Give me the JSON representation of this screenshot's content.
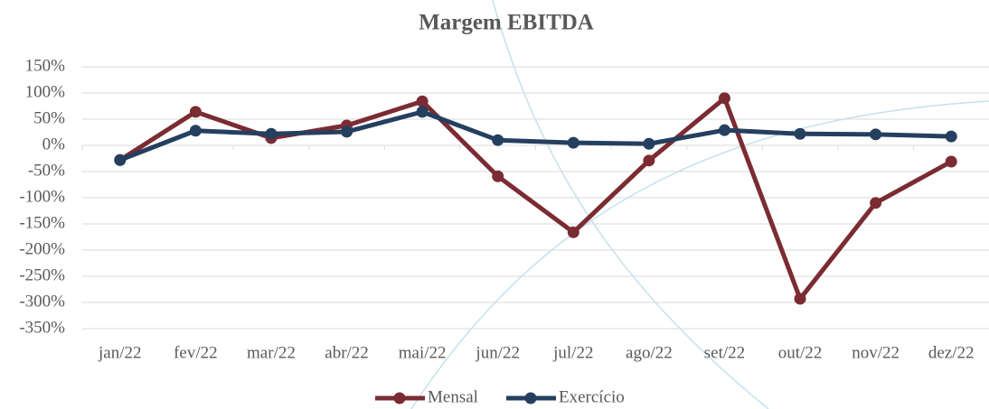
{
  "chart_data": {
    "type": "line",
    "title": "Margem EBITDA",
    "categories": [
      "jan/22",
      "fev/22",
      "mar/22",
      "abr/22",
      "mai/22",
      "jun/22",
      "jul/22",
      "ago/22",
      "set/22",
      "out/22",
      "nov/22",
      "dez/22"
    ],
    "series": [
      {
        "name": "Mensal",
        "color": "#7b2c33",
        "values": [
          -28,
          64,
          14,
          38,
          84,
          -59,
          -166,
          -29,
          90,
          -293,
          -110,
          -31
        ]
      },
      {
        "name": "Exercício",
        "color": "#253f5f",
        "values": [
          -28,
          28,
          22,
          26,
          64,
          10,
          5,
          3,
          29,
          22,
          21,
          17
        ]
      }
    ],
    "ylim": [
      -350,
      150
    ],
    "yticks": [
      {
        "value": -350,
        "label": "-350%"
      },
      {
        "value": -300,
        "label": "-300%"
      },
      {
        "value": -250,
        "label": "-250%"
      },
      {
        "value": -200,
        "label": "-200%"
      },
      {
        "value": -150,
        "label": "-150%"
      },
      {
        "value": -100,
        "label": "-100%"
      },
      {
        "value": -50,
        "label": "-50%"
      },
      {
        "value": 0,
        "label": "0%"
      },
      {
        "value": 50,
        "label": "50%"
      },
      {
        "value": 100,
        "label": "100%"
      },
      {
        "value": 150,
        "label": "150%"
      }
    ],
    "grid": true,
    "legend": "bottom"
  }
}
